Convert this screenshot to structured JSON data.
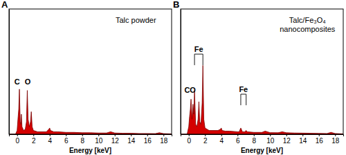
{
  "chart_data": [
    {
      "type": "area",
      "panel": "A",
      "title": [
        "Talc powder"
      ],
      "x_label": "Energy [keV]",
      "color": "#d40000",
      "tick_labels": "x",
      "xlim": [
        -1,
        19
      ],
      "xticks": [
        0,
        2,
        4,
        6,
        8,
        10,
        12,
        14,
        16,
        18
      ],
      "ylim": [
        0,
        100
      ],
      "x": [
        -1,
        -0.2,
        0,
        0.1,
        0.2,
        0.28,
        0.38,
        0.45,
        0.52,
        0.6,
        0.8,
        1.0,
        1.15,
        1.25,
        1.35,
        1.5,
        1.65,
        1.74,
        1.85,
        2.0,
        2.5,
        3,
        3.6,
        3.9,
        4,
        4.1,
        4.5,
        5,
        6,
        7,
        8,
        9,
        10,
        11,
        11.5,
        12,
        13,
        14,
        15,
        16,
        17,
        17.5,
        18,
        19
      ],
      "values": [
        0,
        0,
        3,
        12,
        20,
        36,
        10,
        8,
        16,
        6,
        3,
        4,
        10,
        35,
        12,
        6,
        10,
        18,
        6,
        3,
        2,
        2,
        2,
        4,
        5,
        3,
        2,
        2,
        1.5,
        1.5,
        1.2,
        1.2,
        1,
        1,
        2,
        1,
        0.8,
        0.8,
        0.6,
        0.6,
        0.5,
        1.2,
        0.5,
        0.3
      ],
      "annotations": [
        {
          "text": "C",
          "x": 0.0,
          "y": 40
        },
        {
          "text": "O",
          "x": 1.3,
          "y": 40
        }
      ]
    },
    {
      "type": "area",
      "panel": "B",
      "title": [
        "Talc/Fe₃O₄",
        "nanocomposites"
      ],
      "x_label": "Energy [keV]",
      "color": "#d40000",
      "tick_labels": "x",
      "xlim": [
        -1,
        19
      ],
      "xticks": [
        0,
        2,
        4,
        6,
        8,
        10,
        12,
        14,
        16,
        18
      ],
      "ylim": [
        0,
        100
      ],
      "x": [
        -1,
        -0.2,
        0,
        0.1,
        0.2,
        0.28,
        0.4,
        0.52,
        0.62,
        0.71,
        0.85,
        1.0,
        1.15,
        1.25,
        1.35,
        1.5,
        1.65,
        1.74,
        1.85,
        2.0,
        2.5,
        3,
        3.6,
        3.9,
        4,
        4.1,
        4.5,
        5,
        6,
        6.2,
        6.4,
        6.6,
        6.9,
        7.06,
        7.2,
        8,
        9,
        9.4,
        10,
        11,
        11.5,
        12,
        13,
        14,
        15,
        16,
        17,
        17.5,
        18,
        19
      ],
      "values": [
        0,
        0,
        6,
        14,
        20,
        28,
        12,
        24,
        16,
        35,
        8,
        6,
        12,
        26,
        10,
        8,
        25,
        55,
        12,
        5,
        3,
        3,
        3,
        4,
        5,
        3,
        2.5,
        2.5,
        2,
        2,
        5,
        2,
        2,
        3,
        2,
        1.5,
        1.5,
        2.5,
        1.3,
        1.2,
        2,
        1.2,
        1,
        0.9,
        0.8,
        0.7,
        0.6,
        1.5,
        0.6,
        0.3
      ],
      "annotations": [
        {
          "text": "C",
          "x": -0.2,
          "y": 33
        },
        {
          "text": "O",
          "x": 0.5,
          "y": 33
        },
        {
          "text": "Fe",
          "x": [
            0.71,
            1.74
          ],
          "y": 64
        },
        {
          "text": "Fe",
          "x": [
            6.4,
            7.06
          ],
          "y": 32
        }
      ]
    }
  ]
}
